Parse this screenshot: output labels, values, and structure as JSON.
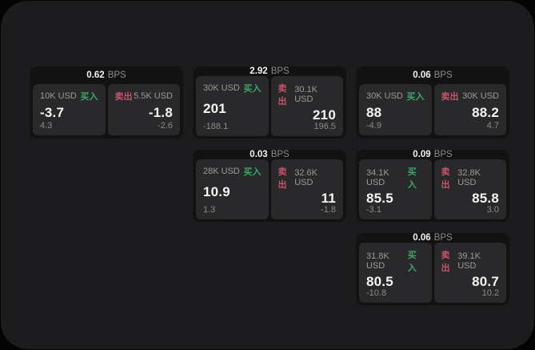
{
  "labels": {
    "bps_unit": "BPS",
    "buy": "买入",
    "sell": "卖出"
  },
  "colors": {
    "buy_green": "#3fa66a",
    "sell_red": "#c65468",
    "surface": "#1c1c1e",
    "card_background": "#121213",
    "panel_background": "#29292b"
  },
  "cards": [
    {
      "bps": "0.62",
      "buy": {
        "size": "10K USD",
        "price": "-3.7",
        "sub": "4.3"
      },
      "sell": {
        "size": "5.5K USD",
        "price": "-1.8",
        "sub": "-2.6"
      }
    },
    {
      "bps": "2.92",
      "buy": {
        "size": "30K USD",
        "price": "201",
        "sub": "-188.1"
      },
      "sell": {
        "size": "30.1K USD",
        "price": "210",
        "sub": "196.5"
      }
    },
    {
      "bps": "0.06",
      "buy": {
        "size": "30K USD",
        "price": "88",
        "sub": "-4.9"
      },
      "sell": {
        "size": "30K USD",
        "price": "88.2",
        "sub": "4.7"
      }
    },
    {
      "bps": "0.03",
      "buy": {
        "size": "28K USD",
        "price": "10.9",
        "sub": "1.3"
      },
      "sell": {
        "size": "32.6K USD",
        "price": "11",
        "sub": "-1.8"
      }
    },
    {
      "bps": "0.09",
      "buy": {
        "size": "34.1K USD",
        "price": "85.5",
        "sub": "-3.1"
      },
      "sell": {
        "size": "32.8K USD",
        "price": "85.8",
        "sub": "3.0"
      }
    },
    {
      "bps": "0.06",
      "buy": {
        "size": "31.8K USD",
        "price": "80.5",
        "sub": "-10.8"
      },
      "sell": {
        "size": "39.1K USD",
        "price": "80.7",
        "sub": "10.2"
      }
    }
  ]
}
